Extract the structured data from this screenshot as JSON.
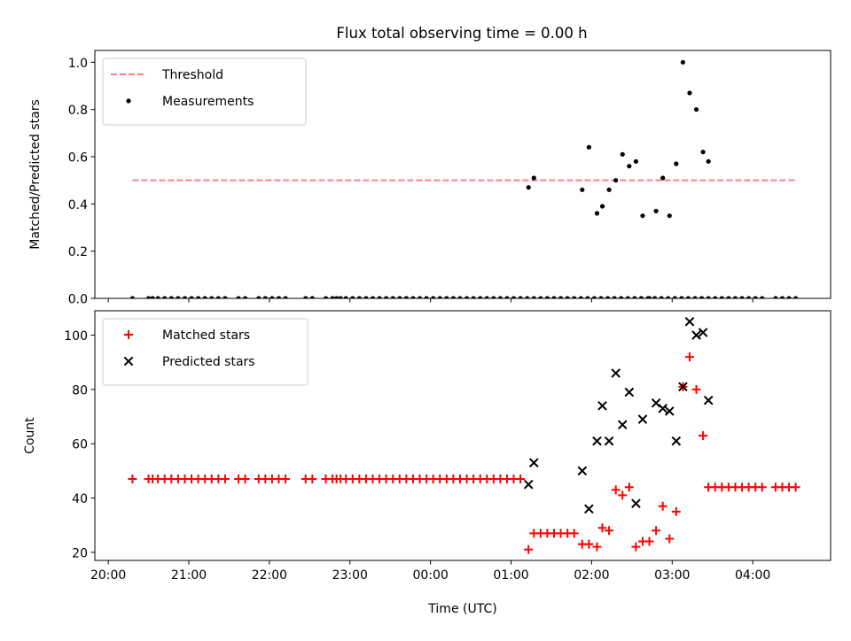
{
  "title": "Flux total observing time = 0.00 h",
  "chart_data": [
    {
      "type": "scatter",
      "xlabel": "",
      "ylabel": "Matched/Predicted stars",
      "xlim": [
        "19:50",
        "04:58"
      ],
      "ylim": [
        0,
        1.05
      ],
      "yticks": [
        0.0,
        0.2,
        0.4,
        0.6,
        0.8,
        1.0
      ],
      "ytick_labels": [
        "0.0",
        "0.2",
        "0.4",
        "0.6",
        "0.8",
        "1.0"
      ],
      "grid": false,
      "legend_position": "top-left",
      "threshold": {
        "name": "Threshold",
        "value": 0.5,
        "x_range": [
          "20:18",
          "04:33"
        ],
        "color": "#ff7f7f",
        "style": "dashed"
      },
      "series": [
        {
          "name": "Measurements",
          "marker": "dot",
          "color": "#000000",
          "x": [
            "20:18",
            "20:30",
            "20:33",
            "20:37",
            "20:42",
            "20:47",
            "20:52",
            "20:57",
            "21:02",
            "21:07",
            "21:12",
            "21:17",
            "21:22",
            "21:27",
            "21:37",
            "21:42",
            "21:52",
            "21:57",
            "22:02",
            "22:07",
            "22:12",
            "22:27",
            "22:32",
            "22:42",
            "22:47",
            "22:50",
            "22:53",
            "22:57",
            "23:02",
            "23:07",
            "23:12",
            "23:17",
            "23:22",
            "23:27",
            "23:32",
            "23:37",
            "23:42",
            "23:47",
            "23:52",
            "23:57",
            "00:02",
            "00:07",
            "00:12",
            "00:17",
            "00:22",
            "00:27",
            "00:32",
            "00:37",
            "00:42",
            "00:47",
            "00:52",
            "00:57",
            "01:02",
            "01:07",
            "01:12",
            "01:17",
            "01:22",
            "01:27",
            "01:32",
            "01:37",
            "01:42",
            "01:47",
            "01:52",
            "01:57",
            "02:02",
            "02:07",
            "02:12",
            "02:17",
            "02:22",
            "02:27",
            "02:32",
            "02:37",
            "02:42",
            "02:47",
            "02:52",
            "02:57",
            "03:02",
            "03:07",
            "03:12",
            "03:17",
            "03:22",
            "03:27",
            "03:32",
            "03:37",
            "03:42",
            "03:47",
            "03:52",
            "03:57",
            "04:02",
            "04:07",
            "04:17",
            "04:22",
            "04:27",
            "04:32"
          ],
          "y": [
            0.0,
            0.0,
            0.0,
            0.0,
            0.0,
            0.0,
            0.0,
            0.0,
            0.0,
            0.0,
            0.0,
            0.0,
            0.0,
            0.0,
            0.0,
            0.0,
            0.0,
            0.0,
            0.0,
            0.0,
            0.0,
            0.0,
            0.0,
            0.0,
            0.0,
            0.0,
            0.0,
            0.0,
            0.0,
            0.0,
            0.0,
            0.0,
            0.0,
            0.0,
            0.0,
            0.0,
            0.0,
            0.0,
            0.0,
            0.0,
            0.0,
            0.0,
            0.0,
            0.0,
            0.0,
            0.0,
            0.0,
            0.0,
            0.0,
            0.0,
            0.0,
            0.0,
            0.0,
            0.0,
            0.0,
            0.0,
            0.0,
            0.0,
            0.0,
            0.0,
            0.0,
            0.0,
            0.0,
            0.0,
            0.0,
            0.0,
            0.0,
            0.0,
            0.0,
            0.0,
            0.0,
            0.0,
            0.0,
            0.0,
            0.0,
            0.0,
            0.0,
            0.0,
            0.0,
            0.0,
            0.0,
            0.0,
            0.0,
            0.0,
            0.0,
            0.0,
            0.0,
            0.0,
            0.0,
            0.0,
            0.0,
            0.0,
            0.0,
            0.0
          ]
        },
        {
          "name": "",
          "marker": "dot",
          "color": "#000000",
          "x": [
            "01:13",
            "01:17",
            "01:53",
            "01:58",
            "02:04",
            "02:08",
            "02:13",
            "02:18",
            "02:23",
            "02:28",
            "02:33",
            "02:38",
            "02:43",
            "02:48",
            "02:53",
            "02:58",
            "03:03",
            "03:08",
            "03:13",
            "03:18",
            "03:23",
            "03:27"
          ],
          "y": [
            0.47,
            0.51,
            0.46,
            0.64,
            0.36,
            0.39,
            0.46,
            0.5,
            0.61,
            0.56,
            0.58,
            0.35,
            0.0,
            0.37,
            0.51,
            0.35,
            0.57,
            1.0,
            0.87,
            0.8,
            0.62,
            0.58
          ]
        }
      ]
    },
    {
      "type": "scatter",
      "xlabel": "Time (UTC)",
      "ylabel": "Count",
      "xlim": [
        "19:50",
        "04:58"
      ],
      "ylim": [
        17,
        109
      ],
      "yticks": [
        20,
        40,
        60,
        80,
        100
      ],
      "ytick_labels": [
        "20",
        "40",
        "60",
        "80",
        "100"
      ],
      "xticks": [
        "20:00",
        "21:00",
        "22:00",
        "23:00",
        "00:00",
        "01:00",
        "02:00",
        "03:00",
        "04:00"
      ],
      "xtick_labels": [
        "20:00",
        "21:00",
        "22:00",
        "23:00",
        "00:00",
        "01:00",
        "02:00",
        "03:00",
        "04:00"
      ],
      "grid": false,
      "legend_position": "top-left",
      "series": [
        {
          "name": "Matched stars",
          "marker": "plus",
          "color": "#ff0000",
          "x": [
            "20:18",
            "20:30",
            "20:33",
            "20:37",
            "20:42",
            "20:47",
            "20:52",
            "20:57",
            "21:02",
            "21:07",
            "21:12",
            "21:17",
            "21:22",
            "21:27",
            "21:37",
            "21:42",
            "21:52",
            "21:57",
            "22:02",
            "22:07",
            "22:12",
            "22:27",
            "22:32",
            "22:42",
            "22:47",
            "22:50",
            "22:53",
            "22:57",
            "23:02",
            "23:07",
            "23:12",
            "23:17",
            "23:22",
            "23:27",
            "23:32",
            "23:37",
            "23:42",
            "23:47",
            "23:52",
            "23:57",
            "00:02",
            "00:07",
            "00:12",
            "00:17",
            "00:22",
            "00:27",
            "00:32",
            "00:37",
            "00:42",
            "00:47",
            "00:52",
            "00:57",
            "01:02",
            "01:07",
            "01:13",
            "01:17",
            "01:22",
            "01:27",
            "01:32",
            "01:37",
            "01:42",
            "01:47",
            "01:53",
            "01:58",
            "02:04",
            "02:08",
            "02:13",
            "02:18",
            "02:23",
            "02:28",
            "02:33",
            "02:38",
            "02:43",
            "02:48",
            "02:53",
            "02:58",
            "03:03",
            "03:08",
            "03:13",
            "03:18",
            "03:23",
            "03:27",
            "03:32",
            "03:37",
            "03:42",
            "03:47",
            "03:52",
            "03:57",
            "04:02",
            "04:07",
            "04:17",
            "04:22",
            "04:27",
            "04:32"
          ],
          "y": [
            47,
            47,
            47,
            47,
            47,
            47,
            47,
            47,
            47,
            47,
            47,
            47,
            47,
            47,
            47,
            47,
            47,
            47,
            47,
            47,
            47,
            47,
            47,
            47,
            47,
            47,
            47,
            47,
            47,
            47,
            47,
            47,
            47,
            47,
            47,
            47,
            47,
            47,
            47,
            47,
            47,
            47,
            47,
            47,
            47,
            47,
            47,
            47,
            47,
            47,
            47,
            47,
            47,
            47,
            21,
            27,
            27,
            27,
            27,
            27,
            27,
            27,
            23,
            23,
            22,
            29,
            28,
            43,
            41,
            44,
            22,
            24,
            24,
            28,
            37,
            25,
            35,
            81,
            92,
            80,
            63,
            44,
            44,
            44,
            44,
            44,
            44,
            44,
            44,
            44,
            44,
            44,
            44,
            44
          ]
        },
        {
          "name": "Predicted stars",
          "marker": "x",
          "color": "#000000",
          "x": [
            "01:13",
            "01:17",
            "01:53",
            "01:58",
            "02:04",
            "02:08",
            "02:13",
            "02:18",
            "02:23",
            "02:28",
            "02:33",
            "02:38",
            "02:48",
            "02:53",
            "02:58",
            "03:03",
            "03:08",
            "03:13",
            "03:18",
            "03:23",
            "03:27"
          ],
          "y": [
            45,
            53,
            50,
            36,
            61,
            74,
            61,
            86,
            67,
            79,
            38,
            69,
            75,
            73,
            72,
            61,
            81,
            105,
            100,
            101,
            76
          ]
        }
      ]
    }
  ]
}
